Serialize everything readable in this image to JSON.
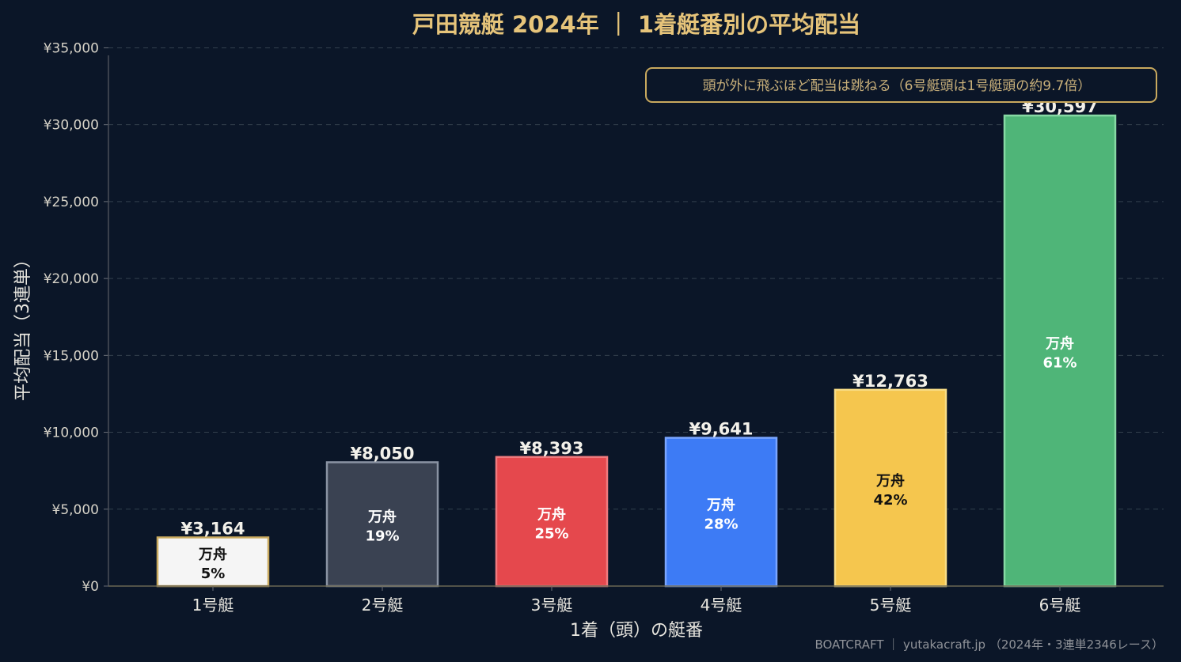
{
  "chart_data": {
    "type": "bar",
    "title": "戸田競艇 2024年 ｜ 1着艇番別の平均配当",
    "xlabel": "1着（頭）の艇番",
    "ylabel": "平均配当（3連単）",
    "categories": [
      "1号艇",
      "2号艇",
      "3号艇",
      "4号艇",
      "5号艇",
      "6号艇"
    ],
    "values": [
      3164,
      8050,
      8393,
      9641,
      12763,
      30597
    ],
    "value_labels": [
      "¥3,164",
      "¥8,050",
      "¥8,393",
      "¥9,641",
      "¥12,763",
      "¥30,597"
    ],
    "inner_title": "万舟",
    "inner_pct": [
      "5%",
      "19%",
      "25%",
      "28%",
      "42%",
      "61%"
    ],
    "bar_colors": [
      "#f5f5f5",
      "#3a4252",
      "#e5484d",
      "#3d7bf5",
      "#f5c64e",
      "#4fb578"
    ],
    "bar_edge_colors": [
      "#c9a95e",
      "#8a93a3",
      "#f07a7e",
      "#7aa5ff",
      "#f8dc85",
      "#86d9a4"
    ],
    "inner_text_colors": [
      "#111111",
      "#ffffff",
      "#ffffff",
      "#ffffff",
      "#111111",
      "#ffffff"
    ],
    "ylim": [
      0,
      36000
    ],
    "yticks": [
      0,
      5000,
      10000,
      15000,
      20000,
      25000,
      30000,
      35000
    ],
    "ytick_labels": [
      "¥0",
      "¥5,000",
      "¥10,000",
      "¥15,000",
      "¥20,000",
      "¥25,000",
      "¥30,000",
      "¥35,000"
    ],
    "grid": true,
    "annotation": "頭が外に飛ぶほど配当は跳ねる（6号艇頭は1号艇頭の約9.7倍）",
    "footer": "BOATCRAFT ｜ yutakacraft.jp （2024年・3連単2346レース）",
    "accent_color": "#e6c47a",
    "background_color": "#0b1628"
  }
}
